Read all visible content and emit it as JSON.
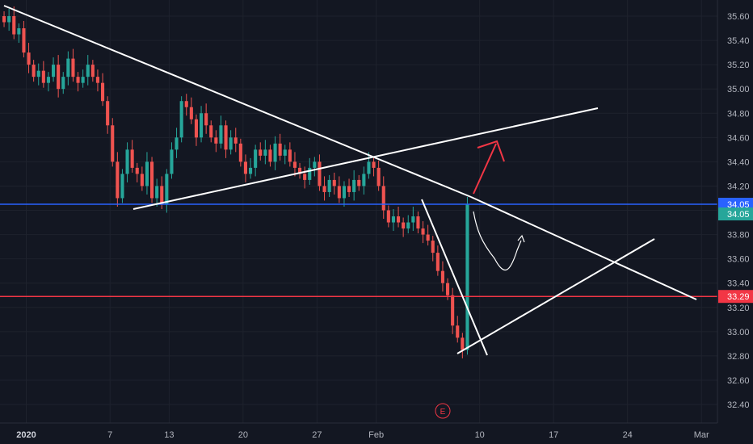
{
  "chart_data": {
    "type": "candlestick",
    "y_ticks": [
      "35.60",
      "35.40",
      "35.20",
      "35.00",
      "34.80",
      "34.60",
      "34.40",
      "34.20",
      "34.00",
      "33.80",
      "33.60",
      "33.40",
      "33.20",
      "33.00",
      "32.80",
      "32.60",
      "32.40"
    ],
    "y_values": [
      35.6,
      35.4,
      35.2,
      35.0,
      34.8,
      34.6,
      34.4,
      34.2,
      34.0,
      33.8,
      33.6,
      33.4,
      33.2,
      33.0,
      32.8,
      32.6,
      32.4
    ],
    "ylim": [
      32.25,
      35.75
    ],
    "x_labels": [
      {
        "text": "2020",
        "bar": 5,
        "bold": true
      },
      {
        "text": "7",
        "bar": 22
      },
      {
        "text": "13",
        "bar": 34
      },
      {
        "text": "20",
        "bar": 49
      },
      {
        "text": "27",
        "bar": 64
      },
      {
        "text": "Feb",
        "bar": 76
      },
      {
        "text": "10",
        "bar": 97
      },
      {
        "text": "17",
        "bar": 112
      },
      {
        "text": "24",
        "bar": 127
      },
      {
        "text": "Mar",
        "bar": 142
      }
    ],
    "price_tags": [
      {
        "label": "34.05",
        "value": 34.05,
        "color": "#2962ff"
      },
      {
        "label": "34.05",
        "value": 33.97,
        "color": "#26a69a"
      },
      {
        "label": "33.29",
        "value": 33.29,
        "color": "#f23645"
      }
    ],
    "horizontal_lines": [
      {
        "value": 34.05,
        "color": "#2962ff"
      },
      {
        "value": 33.29,
        "color": "#f23645"
      }
    ],
    "events_marker": "E",
    "trend_lines_note": "white trendlines drawn as annotations",
    "closes": [
      35.55,
      35.6,
      35.45,
      35.5,
      35.3,
      35.2,
      35.1,
      35.15,
      35.05,
      35.1,
      35.2,
      35.0,
      35.1,
      35.25,
      35.1,
      35.05,
      35.1,
      35.2,
      35.1,
      35.05,
      34.9,
      34.7,
      34.4,
      34.1,
      34.3,
      34.5,
      34.35,
      34.3,
      34.2,
      34.4,
      34.1,
      34.2,
      34.05,
      34.3,
      34.5,
      34.6,
      34.9,
      34.85,
      34.75,
      34.6,
      34.8,
      34.7,
      34.6,
      34.55,
      34.7,
      34.5,
      34.6,
      34.55,
      34.4,
      34.3,
      34.35,
      34.5,
      34.45,
      34.5,
      34.4,
      34.55,
      34.45,
      34.5,
      34.4,
      34.35,
      34.3,
      34.25,
      34.35,
      34.4,
      34.2,
      34.15,
      34.25,
      34.2,
      34.1,
      34.2,
      34.15,
      34.25,
      34.2,
      34.3,
      34.4,
      34.35,
      34.2,
      34.0,
      33.9,
      33.95,
      33.9,
      33.85,
      33.9,
      33.95,
      33.85,
      33.8,
      33.75,
      33.65,
      33.5,
      33.4,
      33.3,
      33.05,
      32.95,
      32.85,
      34.05
    ]
  }
}
